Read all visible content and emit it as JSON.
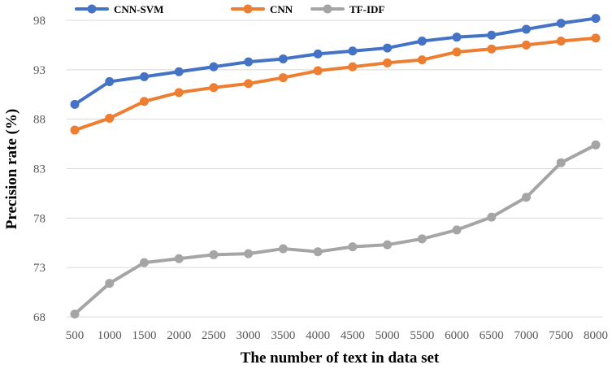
{
  "chart_data": {
    "type": "line",
    "title": "",
    "xlabel": "The number of text in data set",
    "ylabel": "Precision rate (%)",
    "categories": [
      "500",
      "1000",
      "1500",
      "2000",
      "2500",
      "3000",
      "3500",
      "4000",
      "4500",
      "5000",
      "5500",
      "6000",
      "6500",
      "7000",
      "7500",
      "8000"
    ],
    "ylim": [
      68,
      98
    ],
    "yticks": [
      "68",
      "73",
      "78",
      "83",
      "88",
      "93",
      "98"
    ],
    "grid": true,
    "legend_position": "top-left",
    "series": [
      {
        "name": "CNN-SVM",
        "color": "#4472c4",
        "values": [
          89.5,
          91.8,
          92.3,
          92.8,
          93.3,
          93.8,
          94.1,
          94.6,
          94.9,
          95.2,
          95.9,
          96.3,
          96.5,
          97.1,
          97.7,
          98.2
        ]
      },
      {
        "name": "CNN",
        "color": "#ed7d31",
        "values": [
          86.9,
          88.1,
          89.8,
          90.7,
          91.2,
          91.6,
          92.2,
          92.9,
          93.3,
          93.7,
          94.0,
          94.8,
          95.1,
          95.5,
          95.9,
          96.2
        ]
      },
      {
        "name": "TF-IDF",
        "color": "#a5a5a5",
        "values": [
          68.3,
          71.4,
          73.5,
          73.9,
          74.3,
          74.4,
          74.9,
          74.6,
          75.1,
          75.3,
          75.9,
          76.8,
          78.1,
          80.1,
          83.6,
          85.4
        ]
      }
    ]
  }
}
